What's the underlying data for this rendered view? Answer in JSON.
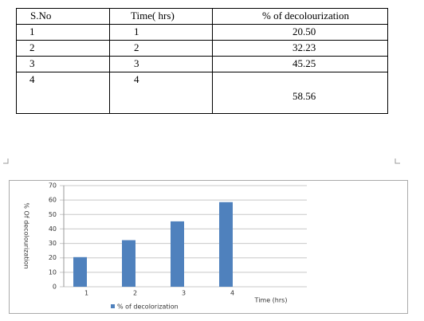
{
  "table": {
    "header": [
      "S.No",
      "Time( hrs)",
      "% of decolourization"
    ],
    "rows": [
      [
        "1",
        "1",
        "20.50"
      ],
      [
        "2",
        "2",
        "32.23"
      ],
      [
        "3",
        "3",
        "45.25"
      ],
      [
        "4",
        "4",
        "58.56"
      ]
    ]
  },
  "chart_data": {
    "type": "bar",
    "x_label": "Time (hrs)",
    "y_label": "% Of decolourization",
    "categories": [
      "1",
      "2",
      "3",
      "4"
    ],
    "series": [
      {
        "name": "% of decolorization",
        "color": "#4f81bd",
        "values": [
          20.5,
          32.23,
          45.25,
          58.56
        ]
      }
    ],
    "ylim": [
      0,
      70
    ],
    "yticks": [
      0,
      10,
      20,
      30,
      40,
      50,
      60,
      70
    ],
    "grid": true,
    "legend": "bottom"
  }
}
